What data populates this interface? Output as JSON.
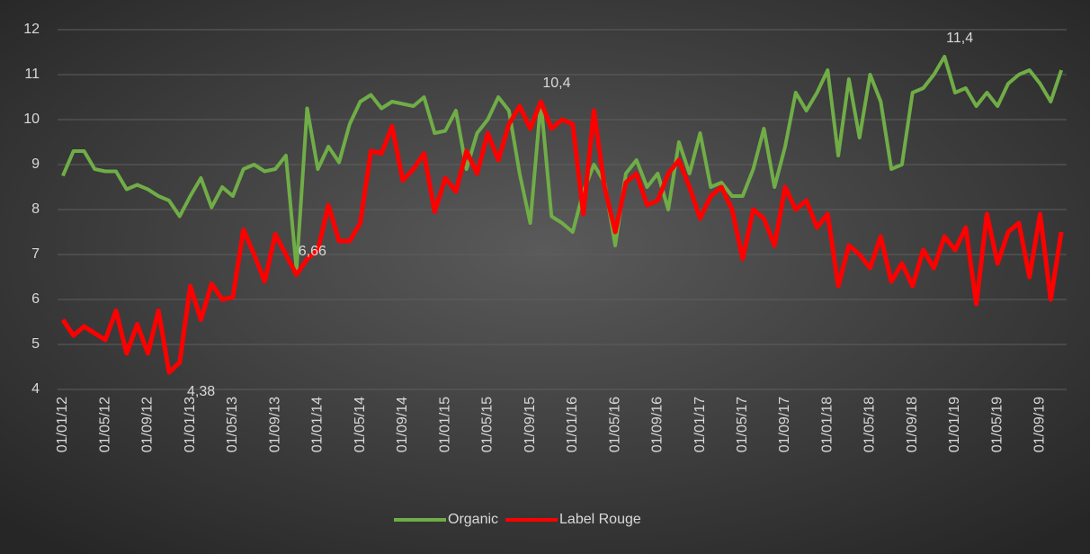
{
  "chart_data": {
    "type": "line",
    "categories": [
      "01/01/12",
      null,
      null,
      null,
      "01/05/12",
      null,
      null,
      null,
      "01/09/12",
      null,
      null,
      null,
      "01/01/13",
      null,
      null,
      null,
      "01/05/13",
      null,
      null,
      null,
      "01/09/13",
      null,
      null,
      null,
      "01/01/14",
      null,
      null,
      null,
      "01/05/14",
      null,
      null,
      null,
      "01/09/14",
      null,
      null,
      null,
      "01/01/15",
      null,
      null,
      null,
      "01/05/15",
      null,
      null,
      null,
      "01/09/15",
      null,
      null,
      null,
      "01/01/16",
      null,
      null,
      null,
      "01/05/16",
      null,
      null,
      null,
      "01/09/16",
      null,
      null,
      null,
      "01/01/17",
      null,
      null,
      null,
      "01/05/17",
      null,
      null,
      null,
      "01/09/17",
      null,
      null,
      null,
      "01/01/18",
      null,
      null,
      null,
      "01/05/18",
      null,
      null,
      null,
      "01/09/18",
      null,
      null,
      null,
      "01/01/19",
      null,
      null,
      null,
      "01/05/19",
      null,
      null,
      null,
      "01/09/19",
      null,
      null
    ],
    "series": [
      {
        "name": "Organic",
        "color": "#70ad47",
        "values": [
          8.75,
          9.3,
          9.3,
          8.9,
          8.85,
          8.85,
          8.45,
          8.55,
          8.45,
          8.3,
          8.2,
          7.85,
          8.3,
          8.7,
          8.05,
          8.5,
          8.3,
          8.9,
          9.0,
          8.85,
          8.9,
          9.2,
          6.66,
          10.25,
          8.9,
          9.4,
          9.05,
          9.9,
          10.4,
          10.55,
          10.25,
          10.4,
          10.35,
          10.3,
          10.5,
          9.7,
          9.75,
          10.2,
          8.9,
          9.7,
          10.0,
          10.5,
          10.2,
          8.8,
          7.7,
          10.4,
          7.85,
          7.7,
          7.5,
          8.4,
          9.0,
          8.6,
          7.2,
          8.8,
          9.1,
          8.5,
          8.8,
          8.0,
          9.5,
          8.8,
          9.7,
          8.5,
          8.6,
          8.3,
          8.3,
          8.9,
          9.8,
          8.5,
          9.4,
          10.6,
          10.2,
          10.6,
          11.1,
          9.2,
          10.9,
          9.6,
          11.0,
          10.4,
          8.9,
          9.0,
          10.6,
          10.7,
          11.0,
          11.4,
          10.6,
          10.7,
          10.3,
          10.6,
          10.3,
          10.8,
          11.0,
          11.1,
          10.8,
          10.4,
          11.1
        ],
        "value_labels": [
          null,
          null,
          null,
          null,
          null,
          null,
          null,
          null,
          null,
          null,
          null,
          null,
          null,
          null,
          null,
          null,
          null,
          null,
          null,
          null,
          null,
          null,
          "6,66",
          null,
          null,
          null,
          null,
          null,
          null,
          null,
          null,
          null,
          null,
          null,
          null,
          null,
          null,
          null,
          null,
          null,
          null,
          null,
          null,
          null,
          null,
          "10,4",
          null,
          null,
          null,
          null,
          null,
          null,
          null,
          null,
          null,
          null,
          null,
          null,
          null,
          null,
          null,
          null,
          null,
          null,
          null,
          null,
          null,
          null,
          null,
          null,
          null,
          null,
          null,
          null,
          null,
          null,
          null,
          null,
          null,
          null,
          null,
          null,
          null,
          "11,4",
          null,
          null,
          null,
          null,
          null,
          null,
          null,
          null,
          null,
          null,
          null
        ]
      },
      {
        "name": "Label Rouge",
        "color": "#ff0000",
        "values": [
          5.55,
          5.2,
          5.4,
          5.25,
          5.1,
          5.75,
          4.8,
          5.45,
          4.8,
          5.75,
          4.38,
          4.6,
          6.3,
          5.55,
          6.35,
          6.0,
          6.05,
          7.55,
          7.0,
          6.4,
          7.45,
          7.0,
          6.55,
          6.9,
          7.1,
          8.1,
          7.3,
          7.3,
          7.7,
          9.3,
          9.25,
          9.85,
          8.65,
          8.9,
          9.25,
          7.95,
          8.7,
          8.4,
          9.3,
          8.8,
          9.7,
          9.1,
          9.9,
          10.3,
          9.8,
          10.4,
          9.8,
          10.0,
          9.9,
          7.9,
          10.2,
          8.5,
          7.5,
          8.6,
          8.8,
          8.1,
          8.2,
          8.8,
          9.1,
          8.5,
          7.8,
          8.3,
          8.5,
          8.0,
          6.9,
          8.0,
          7.8,
          7.2,
          8.5,
          8.0,
          8.2,
          7.6,
          7.9,
          6.3,
          7.2,
          7.0,
          6.7,
          7.4,
          6.4,
          6.8,
          6.3,
          7.1,
          6.7,
          7.4,
          7.1,
          7.6,
          5.9,
          7.9,
          6.8,
          7.5,
          7.7,
          6.5,
          7.9,
          6.0,
          7.5
        ],
        "value_labels": [
          null,
          null,
          null,
          null,
          null,
          null,
          null,
          null,
          null,
          null,
          "4,38",
          null,
          null,
          null,
          null,
          null,
          null,
          null,
          null,
          null,
          null,
          null,
          null,
          null,
          null,
          null,
          null,
          null,
          null,
          null,
          null,
          null,
          null,
          null,
          null,
          null,
          null,
          null,
          null,
          null,
          null,
          null,
          null,
          null,
          null,
          null,
          null,
          null,
          null,
          null,
          null,
          null,
          null,
          null,
          null,
          null,
          null,
          null,
          null,
          null,
          null,
          null,
          null,
          null,
          null,
          null,
          null,
          null,
          null,
          null,
          null,
          null,
          null,
          null,
          null,
          null,
          null,
          null,
          null,
          null,
          null,
          null,
          null,
          null,
          null,
          null,
          null,
          null,
          null,
          null,
          null,
          null,
          null,
          null,
          null
        ]
      }
    ],
    "ylim": [
      4,
      12
    ],
    "yticks": [
      4,
      5,
      6,
      7,
      8,
      9,
      10,
      11,
      12
    ],
    "grid": true,
    "legend": "bottom"
  }
}
